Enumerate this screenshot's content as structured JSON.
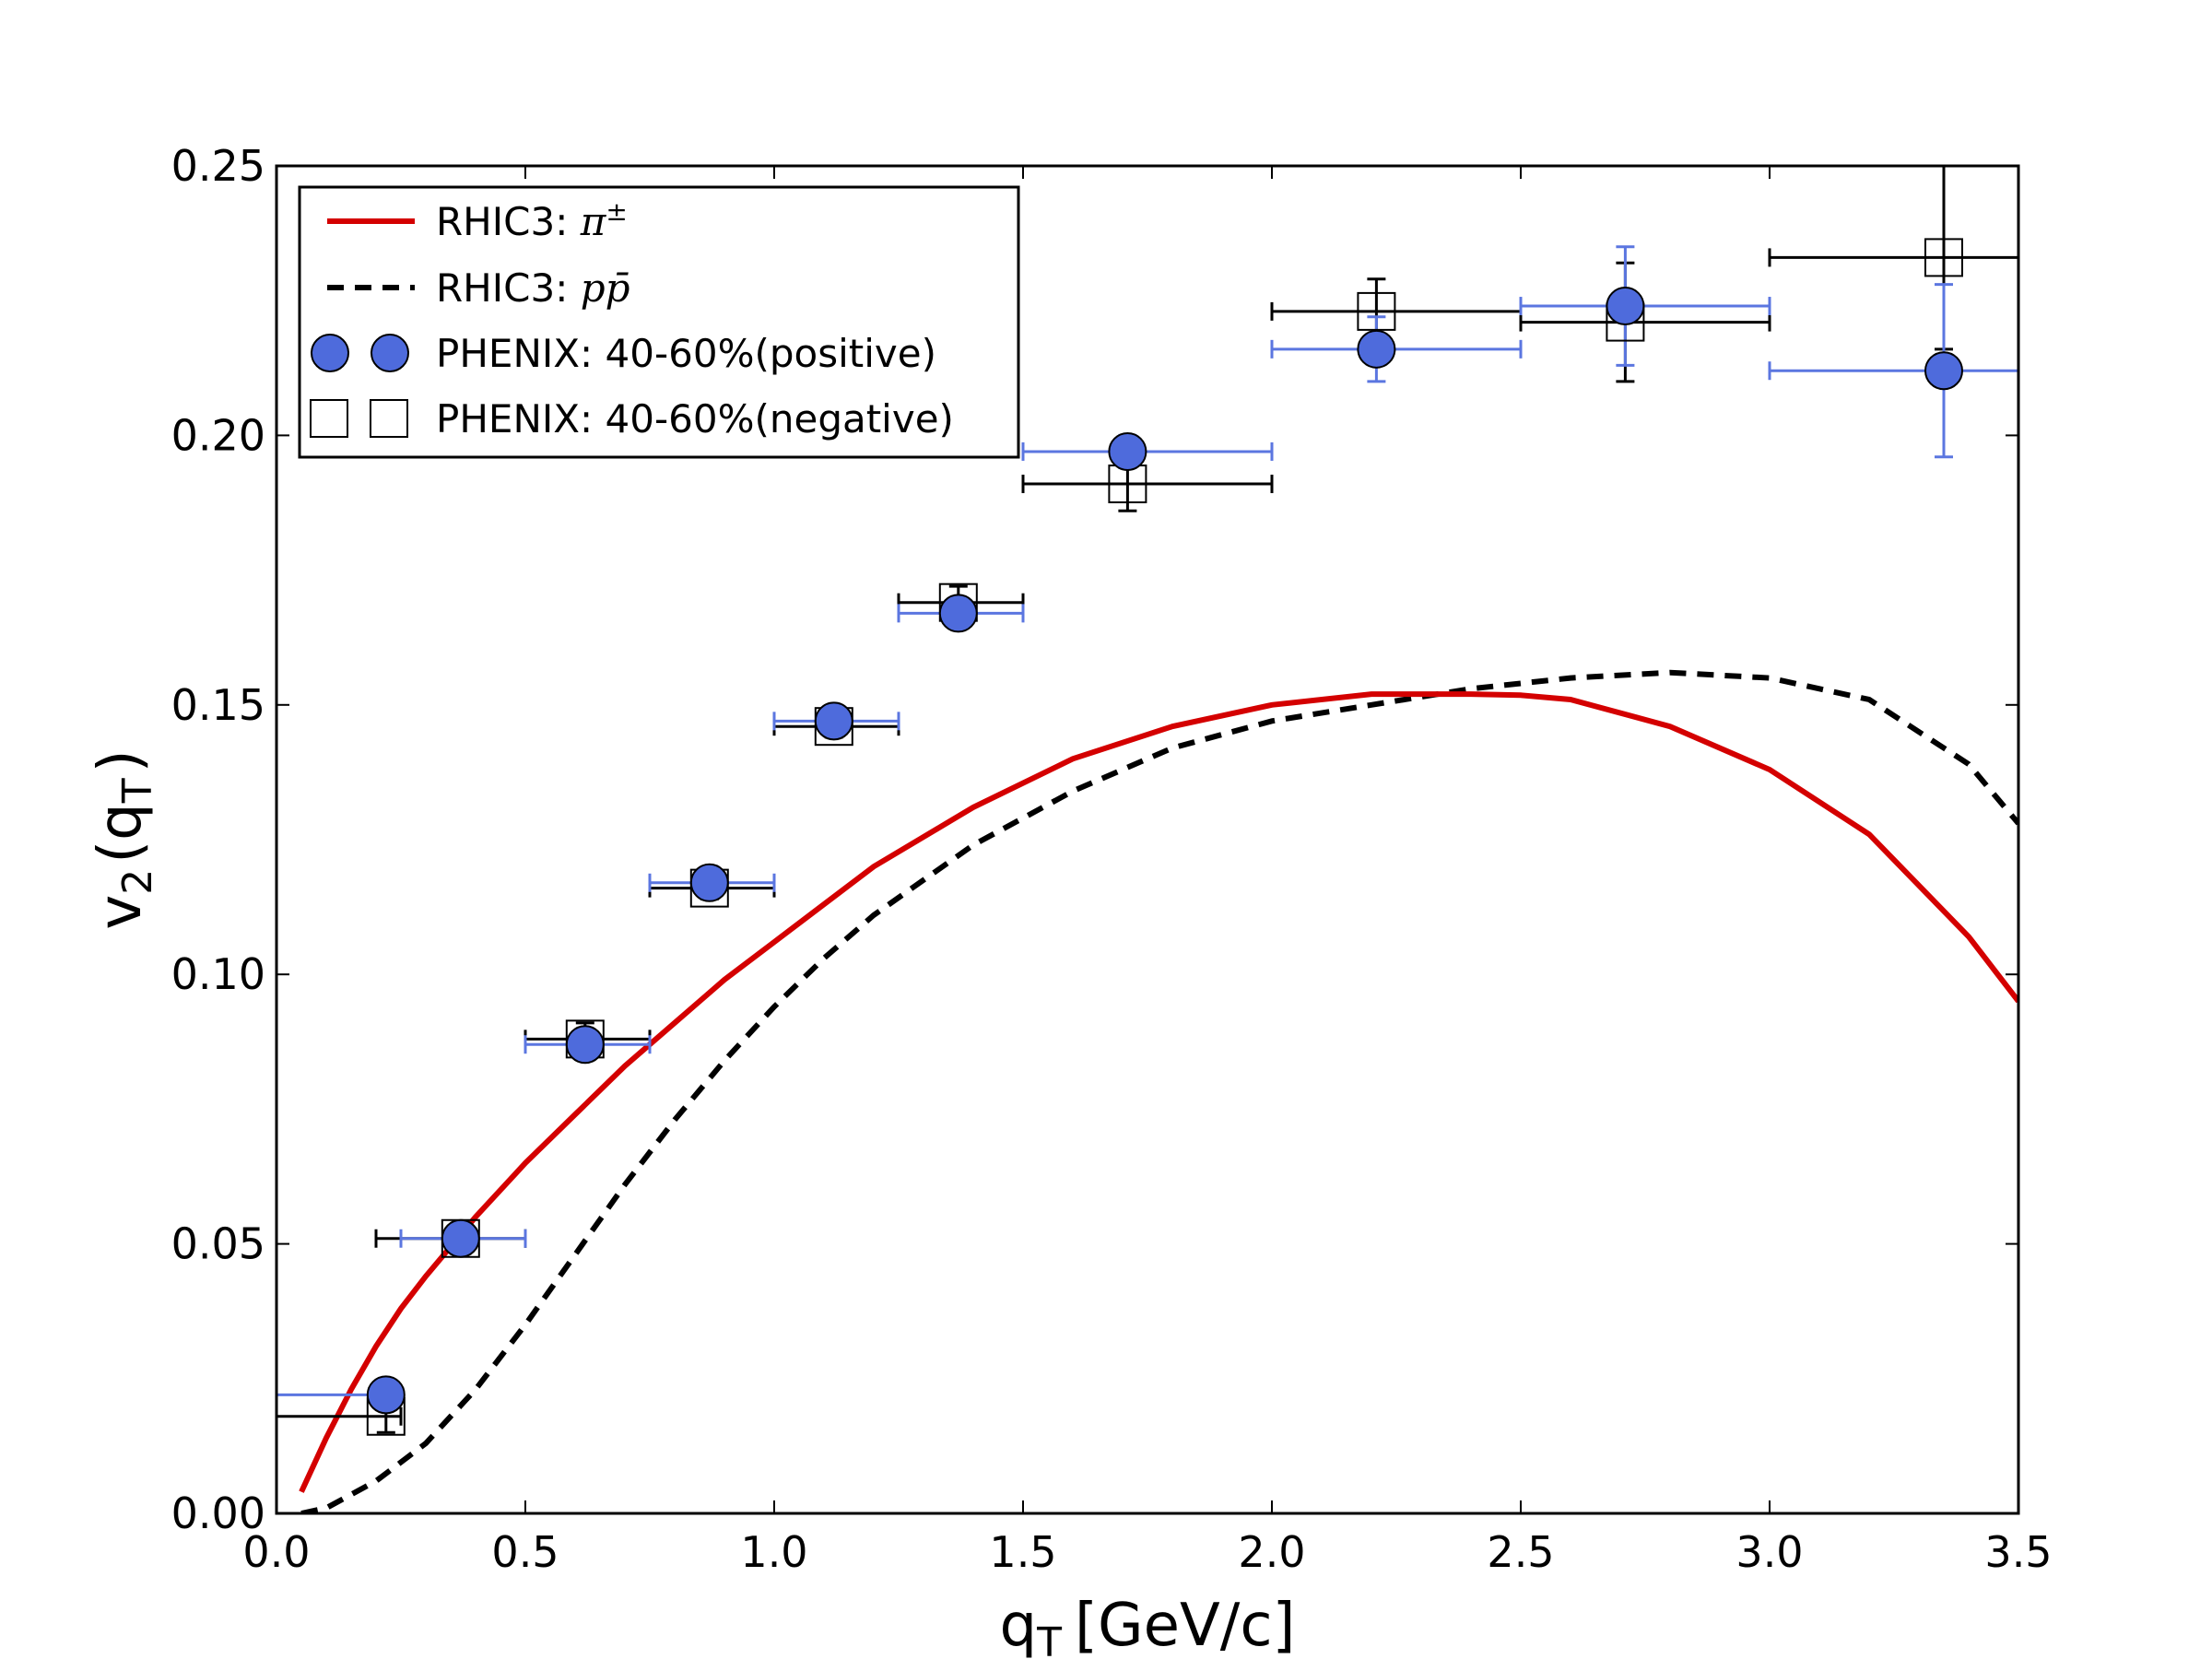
{
  "chart_data": {
    "type": "scatter",
    "title": "",
    "xlabel": "q_T [GeV/c]",
    "xlabel_main": "q",
    "xlabel_sub": "T",
    "xlabel_unit": "[GeV/c]",
    "ylabel": "v_2(q_T)",
    "ylabel_main": "v",
    "ylabel_sub": "2",
    "ylabel_open": "(",
    "ylabel_inner": "q",
    "ylabel_inner_sub": "T",
    "ylabel_close": ")",
    "xlim": [
      0.0,
      3.5
    ],
    "ylim": [
      0.0,
      0.25
    ],
    "xticks": [
      0.0,
      0.5,
      1.0,
      1.5,
      2.0,
      2.5,
      3.0,
      3.5
    ],
    "xtick_labels": [
      "0.0",
      "0.5",
      "1.0",
      "1.5",
      "2.0",
      "2.5",
      "3.0",
      "3.5"
    ],
    "yticks": [
      0.0,
      0.05,
      0.1,
      0.15,
      0.2,
      0.25
    ],
    "ytick_labels": [
      "0.00",
      "0.05",
      "0.10",
      "0.15",
      "0.20",
      "0.25"
    ],
    "grid": false,
    "legend_position": "top-left",
    "colors": {
      "pion_curve": "#d40000",
      "proton_curve": "#000000",
      "positive_fill": "#4e6bdc",
      "positive_err": "#5b76e0",
      "negative_err": "#000000"
    },
    "series": [
      {
        "name": "RHIC3: π±",
        "legend_prefix": "RHIC3: ",
        "legend_math": "π",
        "legend_sup": "±",
        "kind": "line",
        "style": "solid",
        "x": [
          0.05,
          0.1,
          0.15,
          0.2,
          0.25,
          0.3,
          0.4,
          0.5,
          0.6,
          0.7,
          0.8,
          0.9,
          1.0,
          1.2,
          1.4,
          1.6,
          1.8,
          2.0,
          2.2,
          2.4,
          2.5,
          2.6,
          2.8,
          3.0,
          3.2,
          3.4,
          3.5
        ],
        "y": [
          0.004,
          0.014,
          0.023,
          0.031,
          0.038,
          0.044,
          0.055,
          0.065,
          0.074,
          0.083,
          0.091,
          0.099,
          0.106,
          0.12,
          0.131,
          0.14,
          0.146,
          0.15,
          0.152,
          0.152,
          0.1518,
          0.151,
          0.146,
          0.138,
          0.126,
          0.107,
          0.095
        ]
      },
      {
        "name": "RHIC3: pp̄",
        "legend_prefix": "RHIC3: ",
        "legend_math": "pp̄",
        "kind": "line",
        "style": "dashed",
        "x": [
          0.05,
          0.1,
          0.2,
          0.3,
          0.4,
          0.5,
          0.6,
          0.7,
          0.8,
          0.9,
          1.0,
          1.1,
          1.2,
          1.4,
          1.6,
          1.8,
          2.0,
          2.2,
          2.4,
          2.6,
          2.8,
          3.0,
          3.2,
          3.4,
          3.5
        ],
        "y": [
          0.0,
          0.001,
          0.006,
          0.013,
          0.023,
          0.035,
          0.048,
          0.061,
          0.073,
          0.084,
          0.094,
          0.103,
          0.111,
          0.124,
          0.134,
          0.142,
          0.147,
          0.15,
          0.153,
          0.155,
          0.156,
          0.155,
          0.151,
          0.139,
          0.128
        ]
      },
      {
        "name": "PHENIX: 40-60%(positive)",
        "kind": "points",
        "marker": "circle",
        "x": [
          0.22,
          0.37,
          0.62,
          0.87,
          1.12,
          1.37,
          1.71,
          2.21,
          2.71,
          3.35
        ],
        "y": [
          0.022,
          0.051,
          0.087,
          0.117,
          0.147,
          0.167,
          0.197,
          0.216,
          0.224,
          0.212
        ],
        "x_low": [
          0.0,
          0.25,
          0.5,
          0.75,
          1.0,
          1.25,
          1.5,
          2.0,
          2.5,
          3.0
        ],
        "x_high": [
          0.25,
          0.5,
          0.75,
          1.0,
          1.25,
          1.5,
          2.0,
          2.5,
          3.0,
          3.5
        ],
        "y_low": [
          0.02,
          0.049,
          0.085,
          0.115,
          0.145,
          0.165,
          0.194,
          0.21,
          0.213,
          0.196
        ],
        "y_high": [
          0.024,
          0.053,
          0.089,
          0.119,
          0.149,
          0.169,
          0.2,
          0.222,
          0.235,
          0.228
        ]
      },
      {
        "name": "PHENIX: 40-60%(negative)",
        "kind": "points",
        "marker": "square",
        "x": [
          0.22,
          0.37,
          0.62,
          0.87,
          1.12,
          1.37,
          1.71,
          2.21,
          2.71,
          3.35
        ],
        "y": [
          0.018,
          0.051,
          0.088,
          0.116,
          0.146,
          0.169,
          0.191,
          0.223,
          0.221,
          0.233
        ],
        "x_low": [
          0.0,
          0.2,
          0.5,
          0.75,
          1.0,
          1.25,
          1.5,
          2.0,
          2.5,
          3.0
        ],
        "x_high": [
          0.25,
          0.5,
          0.75,
          1.0,
          1.25,
          1.5,
          2.0,
          2.5,
          3.0,
          3.5
        ],
        "y_low": [
          0.015,
          0.049,
          0.085,
          0.114,
          0.144,
          0.166,
          0.186,
          0.215,
          0.21,
          0.216
        ],
        "y_high": [
          0.021,
          0.053,
          0.091,
          0.118,
          0.148,
          0.172,
          0.196,
          0.229,
          0.232,
          0.25
        ]
      }
    ]
  }
}
